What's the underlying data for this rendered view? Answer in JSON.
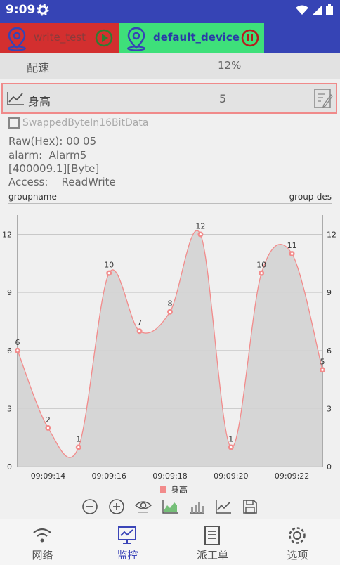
{
  "status": {
    "time": "9:09"
  },
  "devices": [
    {
      "name": "write_test",
      "state": "play"
    },
    {
      "name": "default_device",
      "state": "pause"
    }
  ],
  "rows": {
    "speed": {
      "label": "配速",
      "value": "12%"
    },
    "height": {
      "label": "身高",
      "value": "5"
    }
  },
  "detail": {
    "checkbox_label": "SwappedByteIn16BitData",
    "raw": "Raw(Hex): 00 05",
    "alarm": "alarm:  Alarm5",
    "address": "[400009.1][Byte]",
    "access": "Access:    ReadWrite",
    "groupname": "groupname",
    "groupdes": "group-des"
  },
  "chart_data": {
    "type": "area",
    "x": [
      "09:09:13",
      "09:09:14",
      "09:09:15",
      "09:09:16",
      "09:09:17",
      "09:09:18",
      "09:09:19",
      "09:09:20",
      "09:09:21",
      "09:09:22",
      "09:09:23"
    ],
    "x_tick_labels": [
      "09:09:14",
      "09:09:16",
      "09:09:18",
      "09:09:20",
      "09:09:22"
    ],
    "series": [
      {
        "name": "身高",
        "values": [
          6,
          2,
          1,
          10,
          7,
          8,
          12,
          1,
          10,
          11,
          5
        ],
        "color": "#f28b8b"
      }
    ],
    "ylim": [
      0,
      13
    ],
    "y_ticks": [
      0,
      3,
      6,
      9,
      12
    ],
    "legend_position": "bottom",
    "grid": true,
    "fill_color": "#d3d3d3"
  },
  "toolbar": [
    "zoom-out-icon",
    "zoom-in-icon",
    "eye-icon",
    "area-chart-icon",
    "bar-chart-icon",
    "line-chart-icon",
    "save-icon"
  ],
  "nav": [
    {
      "label": "网络",
      "icon": "wifi-icon"
    },
    {
      "label": "监控",
      "icon": "monitor-icon"
    },
    {
      "label": "派工单",
      "icon": "document-icon"
    },
    {
      "label": "选项",
      "icon": "gear-icon"
    }
  ]
}
